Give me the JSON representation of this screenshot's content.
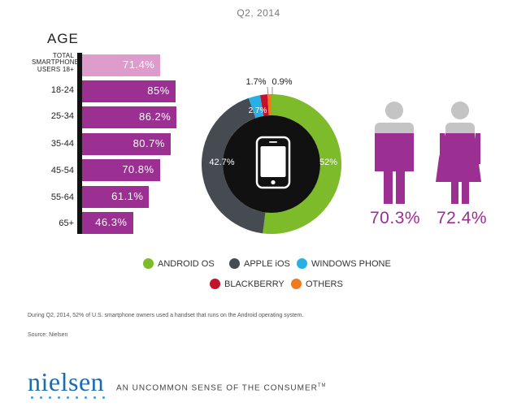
{
  "title": "Q2, 2014",
  "age_chart": {
    "heading": "AGE",
    "bar_color_total": "#dd9ccc",
    "bar_color": "#9b2f92"
  },
  "chart_data": [
    {
      "type": "bar",
      "orientation": "horizontal",
      "categories": [
        "TOTAL SMARTPHONE USERS 18+",
        "18-24",
        "25-34",
        "35-44",
        "45-54",
        "55-64",
        "65+"
      ],
      "values": [
        71.4,
        85,
        86.2,
        80.7,
        70.8,
        61.1,
        46.3
      ],
      "value_labels": [
        "71.4%",
        "85%",
        "86.2%",
        "80.7%",
        "70.8%",
        "61.1%",
        "46.3%"
      ],
      "title": "AGE",
      "xlim": [
        0,
        100
      ],
      "grid": false
    },
    {
      "type": "pie",
      "donut": true,
      "categories": [
        "ANDROID OS",
        "APPLE iOS",
        "WINDOWS PHONE",
        "BLACKBERRY",
        "OTHERS"
      ],
      "values": [
        52,
        42.7,
        2.7,
        1.7,
        0.9
      ],
      "value_labels": [
        "52%",
        "42.7%",
        "2.7%",
        "1.7%",
        "0.9%"
      ],
      "colors": [
        "#7dbb2b",
        "#464b52",
        "#27b0e8",
        "#c3112e",
        "#ef7a22"
      ],
      "legend_position": "bottom"
    },
    {
      "type": "bar",
      "categories": [
        "male",
        "female"
      ],
      "values": [
        70.3,
        72.4
      ],
      "value_labels": [
        "70.3%",
        "72.4%"
      ],
      "colors": [
        "#9b2f92"
      ]
    }
  ],
  "footnote": "During Q2, 2014, 52% of U.S. smartphone owners used a handset that runs on the Android operating system.",
  "source": "Source: Nielsen",
  "brand": {
    "logo": "nielsen",
    "tagline": "AN UNCOMMON SENSE OF THE CONSUMER",
    "tagline_mark": "TM",
    "logo_color": "#1a6bb2"
  }
}
